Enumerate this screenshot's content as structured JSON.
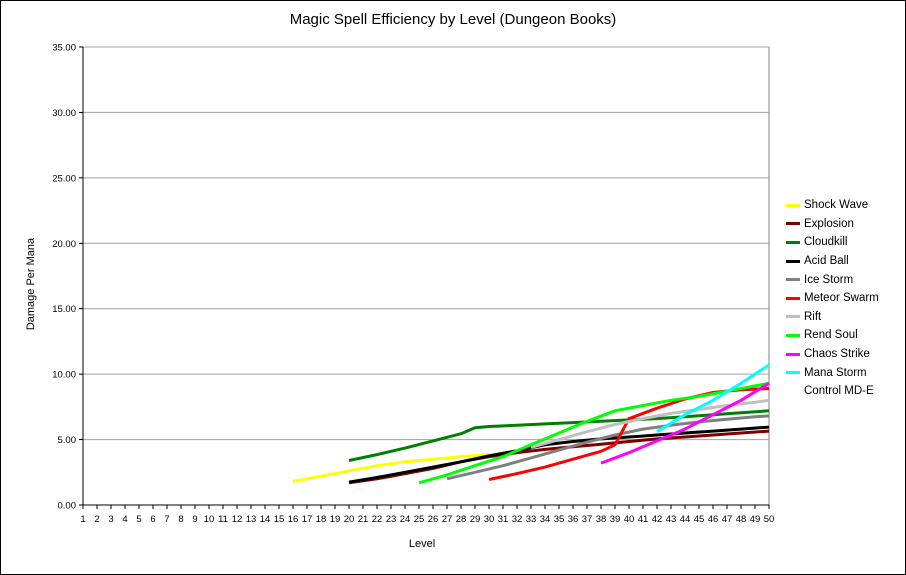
{
  "chart_data": {
    "type": "line",
    "title": "Magic Spell Efficiency by Level (Dungeon Books)",
    "xlabel": "Level",
    "ylabel": "Damage Per Mana",
    "xlim": [
      1,
      50
    ],
    "ylim": [
      0,
      35
    ],
    "y_ticks": [
      "0.00",
      "5.00",
      "10.00",
      "15.00",
      "20.00",
      "25.00",
      "30.00",
      "35.00"
    ],
    "x_ticks": [
      "1",
      "2",
      "3",
      "4",
      "5",
      "6",
      "7",
      "8",
      "9",
      "10",
      "11",
      "12",
      "13",
      "14",
      "15",
      "16",
      "17",
      "18",
      "19",
      "20",
      "21",
      "22",
      "23",
      "24",
      "25",
      "26",
      "27",
      "28",
      "29",
      "30",
      "31",
      "32",
      "33",
      "34",
      "35",
      "36",
      "37",
      "38",
      "39",
      "40",
      "41",
      "42",
      "43",
      "44",
      "45",
      "46",
      "47",
      "48",
      "49",
      "50"
    ],
    "grid": "horizontal",
    "legend_position": "right",
    "series": [
      {
        "name": "Shock Wave",
        "color": "#ffff00",
        "x": [
          16,
          18,
          20,
          22,
          24,
          26,
          28,
          30
        ],
        "y": [
          1.8,
          2.2,
          2.6,
          3.0,
          3.3,
          3.5,
          3.7,
          3.85
        ]
      },
      {
        "name": "Explosion",
        "color": "#800000",
        "x": [
          20,
          22,
          24,
          26,
          28,
          30,
          32,
          34,
          36,
          38,
          40,
          42,
          44,
          46,
          48,
          50
        ],
        "y": [
          1.7,
          2.0,
          2.4,
          2.8,
          3.3,
          3.7,
          4.0,
          4.25,
          4.45,
          4.65,
          4.85,
          5.05,
          5.2,
          5.35,
          5.5,
          5.65
        ]
      },
      {
        "name": "Cloudkill",
        "color": "#008000",
        "x": [
          20,
          22,
          24,
          26,
          28,
          29,
          30,
          32,
          34,
          36,
          38,
          40,
          42,
          44,
          46,
          48,
          50
        ],
        "y": [
          3.4,
          3.85,
          4.35,
          4.9,
          5.45,
          5.9,
          6.0,
          6.1,
          6.2,
          6.3,
          6.4,
          6.5,
          6.6,
          6.75,
          6.9,
          7.05,
          7.2
        ]
      },
      {
        "name": "Acid Ball",
        "color": "#000000",
        "x": [
          20,
          22,
          24,
          26,
          28,
          30,
          32,
          34,
          36,
          38,
          40,
          42,
          44,
          46,
          48,
          50
        ],
        "y": [
          1.75,
          2.1,
          2.5,
          2.9,
          3.3,
          3.75,
          4.15,
          4.6,
          4.85,
          5.05,
          5.2,
          5.35,
          5.5,
          5.65,
          5.8,
          5.95
        ]
      },
      {
        "name": "Ice Storm",
        "color": "#808080",
        "x": [
          27,
          29,
          31,
          33,
          35,
          37,
          39,
          41,
          43,
          45,
          47,
          49,
          50
        ],
        "y": [
          2.0,
          2.5,
          3.0,
          3.6,
          4.2,
          4.8,
          5.35,
          5.8,
          6.1,
          6.35,
          6.55,
          6.75,
          6.8
        ]
      },
      {
        "name": "Meteor Swarm",
        "color": "#ff0000",
        "x": [
          30,
          32,
          34,
          36,
          38,
          39,
          40,
          42,
          44,
          46,
          48,
          50
        ],
        "y": [
          1.95,
          2.4,
          2.9,
          3.5,
          4.1,
          4.6,
          6.6,
          7.4,
          8.1,
          8.6,
          8.8,
          8.9
        ]
      },
      {
        "name": "Rift",
        "color": "#c0c0c0",
        "x": [
          33,
          35,
          37,
          39,
          41,
          43,
          45,
          47,
          49,
          50
        ],
        "y": [
          4.4,
          5.0,
          5.6,
          6.15,
          6.6,
          7.0,
          7.3,
          7.6,
          7.85,
          8.0
        ]
      },
      {
        "name": "Rend Soul",
        "color": "#00ff00",
        "x": [
          25,
          27,
          29,
          31,
          33,
          35,
          37,
          39,
          41,
          43,
          45,
          47,
          49,
          50
        ],
        "y": [
          1.7,
          2.3,
          3.0,
          3.7,
          4.6,
          5.5,
          6.4,
          7.2,
          7.6,
          8.0,
          8.3,
          8.7,
          9.1,
          9.3
        ]
      },
      {
        "name": "Chaos Strike",
        "color": "#ff00ff",
        "x": [
          38,
          40,
          42,
          44,
          46,
          48,
          50
        ],
        "y": [
          3.2,
          4.0,
          4.9,
          5.8,
          6.9,
          8.0,
          9.3
        ]
      },
      {
        "name": "Mana Storm",
        "color": "#00ffff",
        "x": [
          42,
          44,
          46,
          48,
          50
        ],
        "y": [
          5.6,
          6.9,
          8.0,
          9.3,
          10.7
        ]
      },
      {
        "name": "Control MD-E",
        "color": "#ffffff",
        "x": [],
        "y": []
      }
    ]
  }
}
